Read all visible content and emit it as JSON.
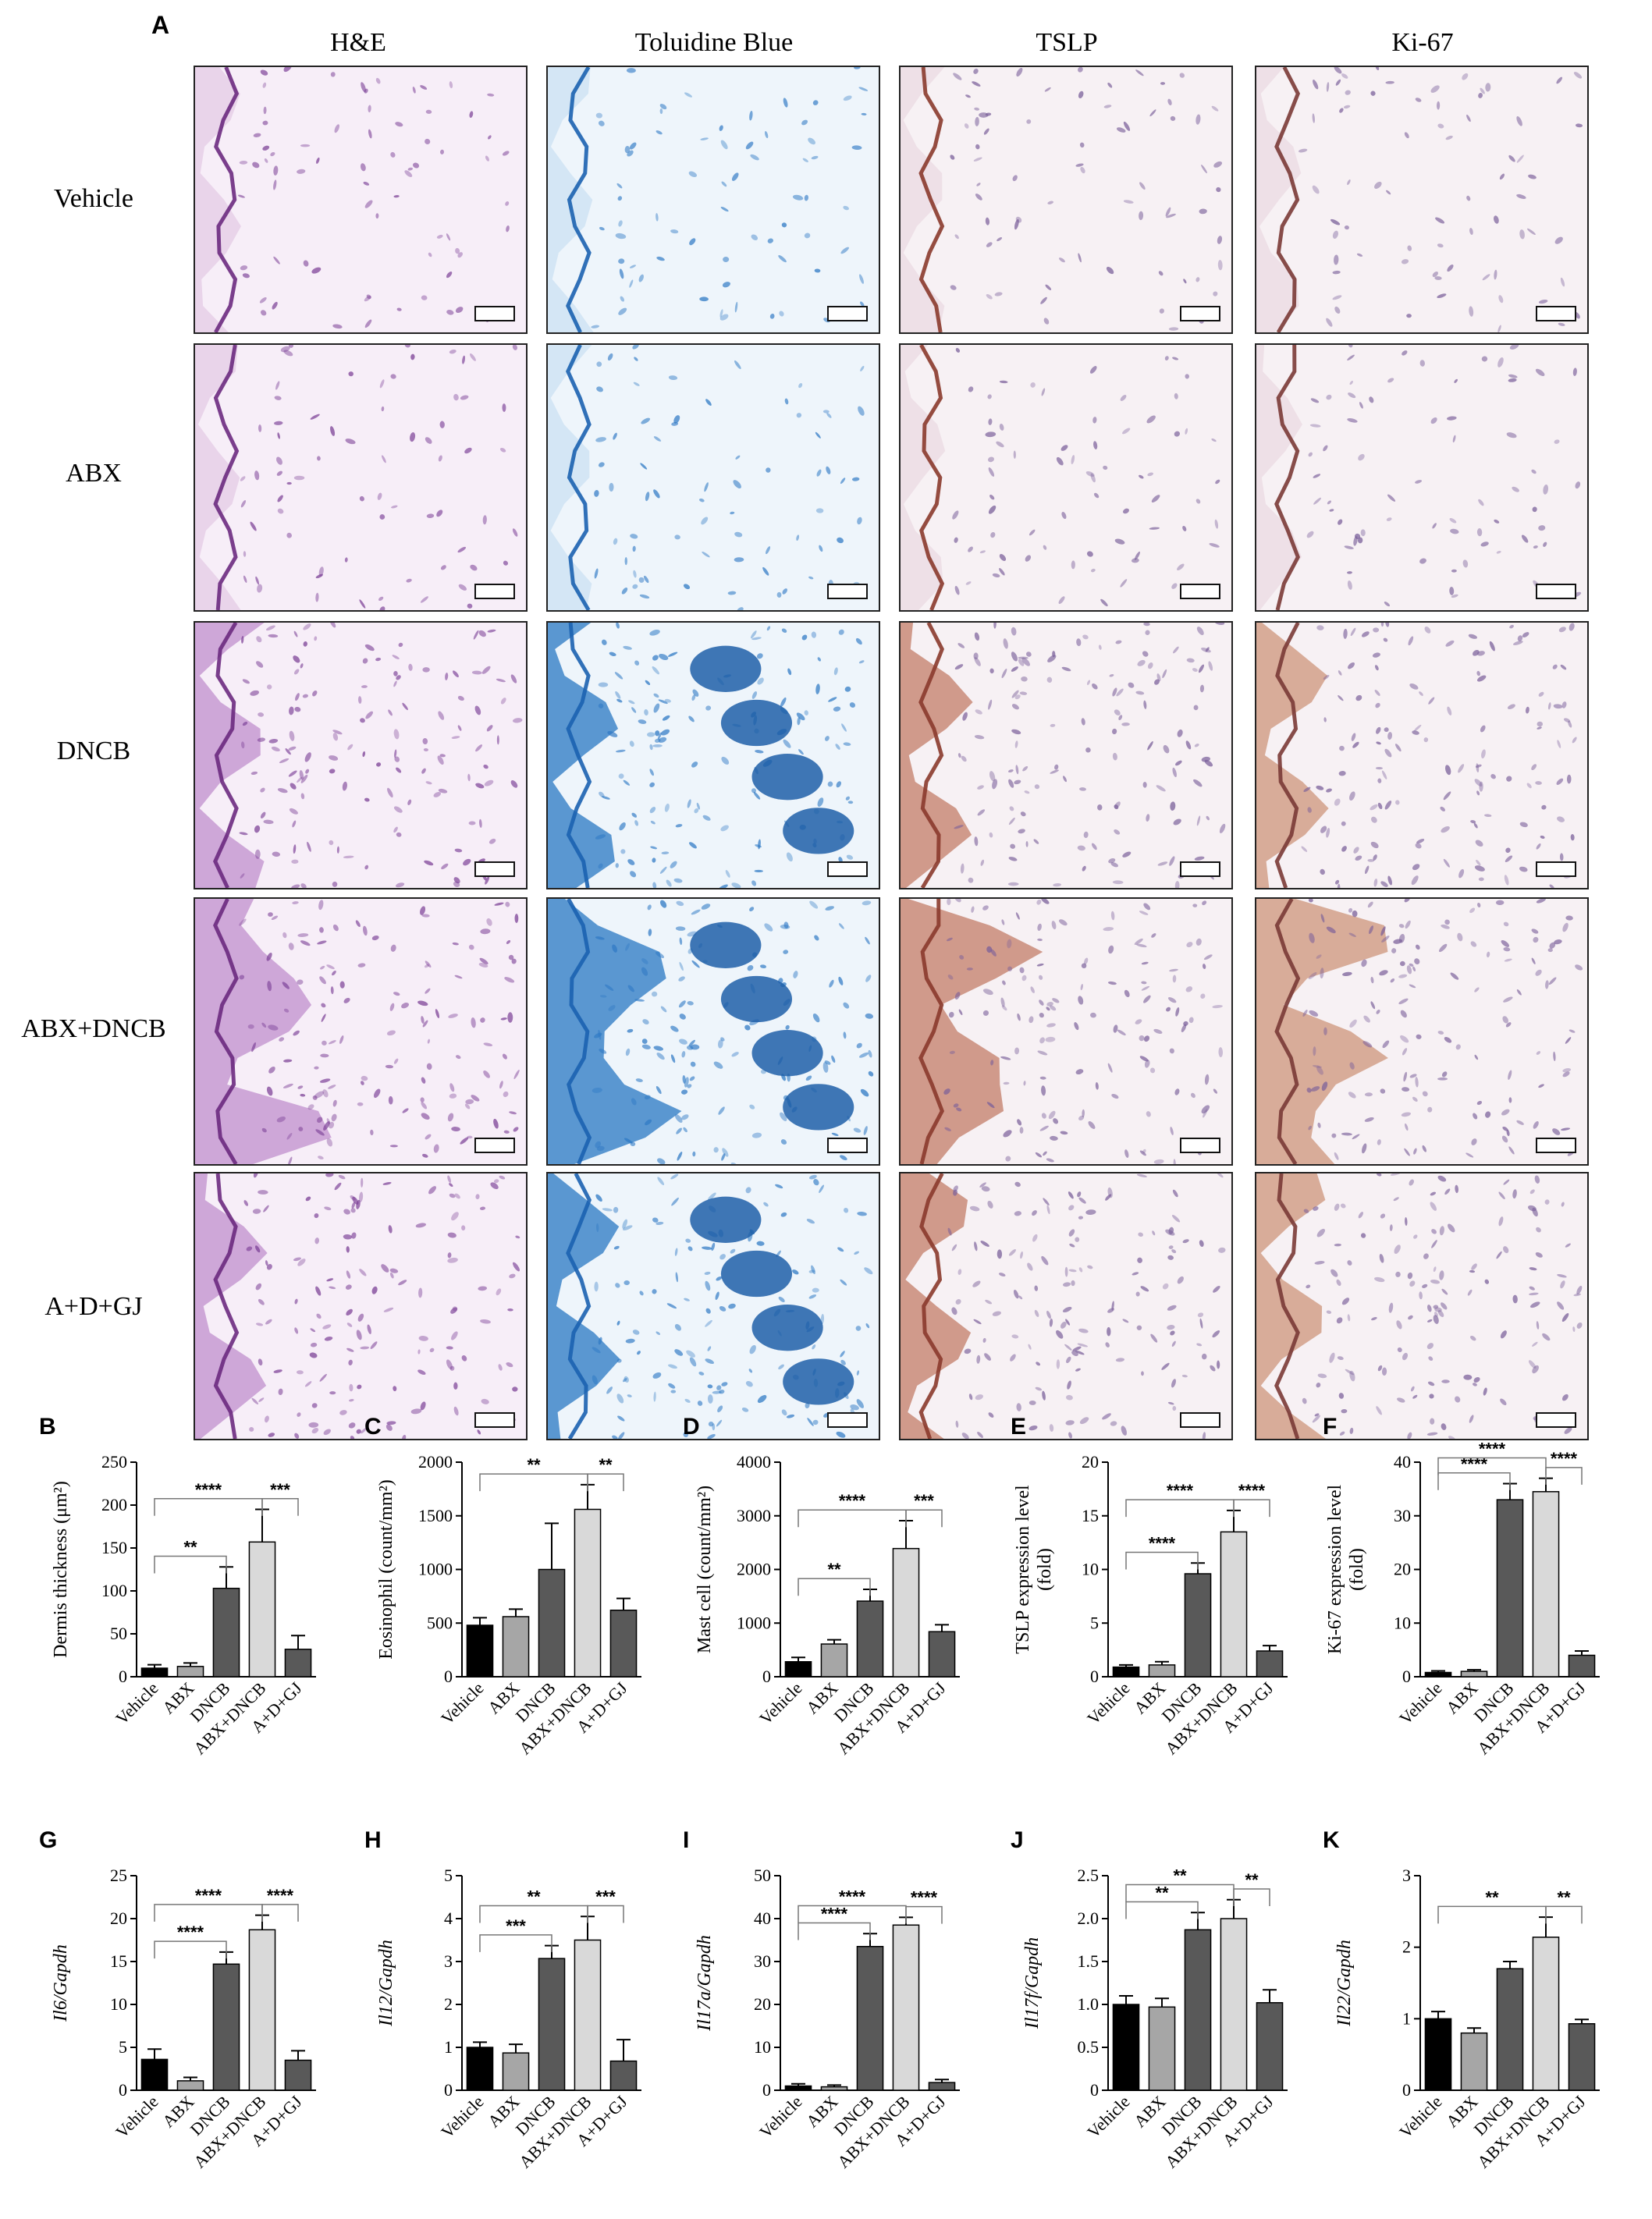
{
  "panel_a": {
    "letter": "A",
    "columns": [
      "H&E",
      "Toluidine Blue",
      "TSLP",
      "Ki-67"
    ],
    "rows": [
      "Vehicle",
      "ABX",
      "DNCB",
      "ABX+DNCB",
      "A+D+GJ"
    ]
  },
  "colors": {
    "black_bar": "#000000",
    "grey_bar": "#a6a6a6",
    "dark_bar": "#595959",
    "light_bar": "#d9d9d9",
    "he_stain": "#9b4fa8",
    "tb_stain": "#2f7fc6",
    "ihc_stain": "#a65a3e"
  },
  "chart_data": [
    {
      "type": "bar",
      "letter": "B",
      "ylabel": "Dermis thickness (μm²)",
      "categories": [
        "Vehicle",
        "ABX",
        "DNCB",
        "ABX+DNCB",
        "A+D+GJ"
      ],
      "values": [
        10,
        12,
        103,
        157,
        32
      ],
      "errors": [
        4,
        4,
        25,
        38,
        16
      ],
      "ylim": [
        0,
        250
      ],
      "yticks": [
        0,
        50,
        100,
        150,
        200,
        250
      ],
      "sig": [
        {
          "label": "**",
          "from": 0,
          "to": 2
        },
        {
          "label": "****",
          "from": 0,
          "to": 3
        },
        {
          "label": "***",
          "from": 3,
          "to": 4
        }
      ]
    },
    {
      "type": "bar",
      "letter": "C",
      "ylabel": "Eosinophil (count/mm²)",
      "categories": [
        "Vehicle",
        "ABX",
        "DNCB",
        "ABX+DNCB",
        "A+D+GJ"
      ],
      "values": [
        480,
        560,
        1000,
        1560,
        620
      ],
      "errors": [
        70,
        70,
        430,
        230,
        110
      ],
      "ylim": [
        0,
        2000
      ],
      "yticks": [
        0,
        500,
        1000,
        1500,
        2000
      ],
      "sig": [
        {
          "label": "**",
          "from": 0,
          "to": 3
        },
        {
          "label": "**",
          "from": 3,
          "to": 4
        }
      ]
    },
    {
      "type": "bar",
      "letter": "D",
      "ylabel": "Mast cell (count/mm²)",
      "categories": [
        "Vehicle",
        "ABX",
        "DNCB",
        "ABX+DNCB",
        "A+D+GJ"
      ],
      "values": [
        280,
        610,
        1410,
        2390,
        840
      ],
      "errors": [
        80,
        80,
        220,
        520,
        130
      ],
      "ylim": [
        0,
        4000
      ],
      "yticks": [
        0,
        1000,
        2000,
        3000,
        4000
      ],
      "sig": [
        {
          "label": "**",
          "from": 0,
          "to": 2
        },
        {
          "label": "****",
          "from": 0,
          "to": 3
        },
        {
          "label": "***",
          "from": 3,
          "to": 4
        }
      ]
    },
    {
      "type": "bar",
      "letter": "E",
      "ylabel": "TSLP expression level (fold)",
      "categories": [
        "Vehicle",
        "ABX",
        "DNCB",
        "ABX+DNCB",
        "A+D+GJ"
      ],
      "values": [
        0.9,
        1.1,
        9.6,
        13.5,
        2.4
      ],
      "errors": [
        0.2,
        0.3,
        1.0,
        2.0,
        0.5
      ],
      "ylim": [
        0,
        20
      ],
      "yticks": [
        0,
        5,
        10,
        15,
        20
      ],
      "sig": [
        {
          "label": "****",
          "from": 0,
          "to": 2
        },
        {
          "label": "****",
          "from": 0,
          "to": 3
        },
        {
          "label": "****",
          "from": 3,
          "to": 4
        }
      ]
    },
    {
      "type": "bar",
      "letter": "F",
      "ylabel": "Ki-67 expression level (fold)",
      "categories": [
        "Vehicle",
        "ABX",
        "DNCB",
        "ABX+DNCB",
        "A+D+GJ"
      ],
      "values": [
        0.8,
        1.0,
        33,
        34.5,
        4.0
      ],
      "errors": [
        0.3,
        0.3,
        3,
        2.5,
        0.8
      ],
      "ylim": [
        0,
        40
      ],
      "yticks": [
        0,
        10,
        20,
        30,
        40
      ],
      "sig": [
        {
          "label": "****",
          "from": 0,
          "to": 2
        },
        {
          "label": "****",
          "from": 0,
          "to": 3
        },
        {
          "label": "****",
          "from": 3,
          "to": 4
        }
      ]
    },
    {
      "type": "bar",
      "letter": "G",
      "ylabel": "Il6/Gapdh",
      "categories": [
        "Vehicle",
        "ABX",
        "DNCB",
        "ABX+DNCB",
        "A+D+GJ"
      ],
      "values": [
        3.6,
        1.1,
        14.7,
        18.7,
        3.5
      ],
      "errors": [
        1.2,
        0.4,
        1.4,
        1.7,
        1.1
      ],
      "ylim": [
        0,
        25
      ],
      "yticks": [
        0,
        5,
        10,
        15,
        20,
        25
      ],
      "sig": [
        {
          "label": "****",
          "from": 0,
          "to": 2
        },
        {
          "label": "****",
          "from": 0,
          "to": 3
        },
        {
          "label": "****",
          "from": 3,
          "to": 4
        }
      ]
    },
    {
      "type": "bar",
      "letter": "H",
      "ylabel": "Il12/Gapdh",
      "categories": [
        "Vehicle",
        "ABX",
        "DNCB",
        "ABX+DNCB",
        "A+D+GJ"
      ],
      "values": [
        1.0,
        0.87,
        3.07,
        3.5,
        0.68
      ],
      "errors": [
        0.12,
        0.2,
        0.3,
        0.55,
        0.5
      ],
      "ylim": [
        0,
        5
      ],
      "yticks": [
        0,
        1,
        2,
        3,
        4,
        5
      ],
      "sig": [
        {
          "label": "***",
          "from": 0,
          "to": 2
        },
        {
          "label": "**",
          "from": 0,
          "to": 3
        },
        {
          "label": "***",
          "from": 3,
          "to": 4
        }
      ]
    },
    {
      "type": "bar",
      "letter": "I",
      "ylabel": "Il17a/Gapdh",
      "categories": [
        "Vehicle",
        "ABX",
        "DNCB",
        "ABX+DNCB",
        "A+D+GJ"
      ],
      "values": [
        1.0,
        0.8,
        33.5,
        38.5,
        1.8
      ],
      "errors": [
        0.5,
        0.4,
        3,
        1.8,
        0.7
      ],
      "ylim": [
        0,
        50
      ],
      "yticks": [
        0,
        10,
        20,
        30,
        40,
        50
      ],
      "sig": [
        {
          "label": "****",
          "from": 0,
          "to": 2
        },
        {
          "label": "****",
          "from": 0,
          "to": 3
        },
        {
          "label": "****",
          "from": 3,
          "to": 4
        }
      ]
    },
    {
      "type": "bar",
      "letter": "J",
      "ylabel": "Il17f/Gapdh",
      "categories": [
        "Vehicle",
        "ABX",
        "DNCB",
        "ABX+DNCB",
        "A+D+GJ"
      ],
      "values": [
        1.0,
        0.97,
        1.87,
        2.0,
        1.02
      ],
      "errors": [
        0.1,
        0.1,
        0.2,
        0.22,
        0.15
      ],
      "ylim": [
        0,
        2.5
      ],
      "yticks": [
        0,
        0.5,
        1.0,
        1.5,
        2.0,
        2.5
      ],
      "sig": [
        {
          "label": "**",
          "from": 0,
          "to": 2
        },
        {
          "label": "**",
          "from": 0,
          "to": 3
        },
        {
          "label": "**",
          "from": 3,
          "to": 4
        }
      ]
    },
    {
      "type": "bar",
      "letter": "K",
      "ylabel": "Il22/Gapdh",
      "categories": [
        "Vehicle",
        "ABX",
        "DNCB",
        "ABX+DNCB",
        "A+D+GJ"
      ],
      "values": [
        1.0,
        0.8,
        1.7,
        2.14,
        0.93
      ],
      "errors": [
        0.1,
        0.07,
        0.1,
        0.28,
        0.06
      ],
      "ylim": [
        0,
        3
      ],
      "yticks": [
        0,
        1,
        2,
        3
      ],
      "sig": [
        {
          "label": "**",
          "from": 0,
          "to": 3
        },
        {
          "label": "**",
          "from": 3,
          "to": 4
        }
      ]
    }
  ]
}
